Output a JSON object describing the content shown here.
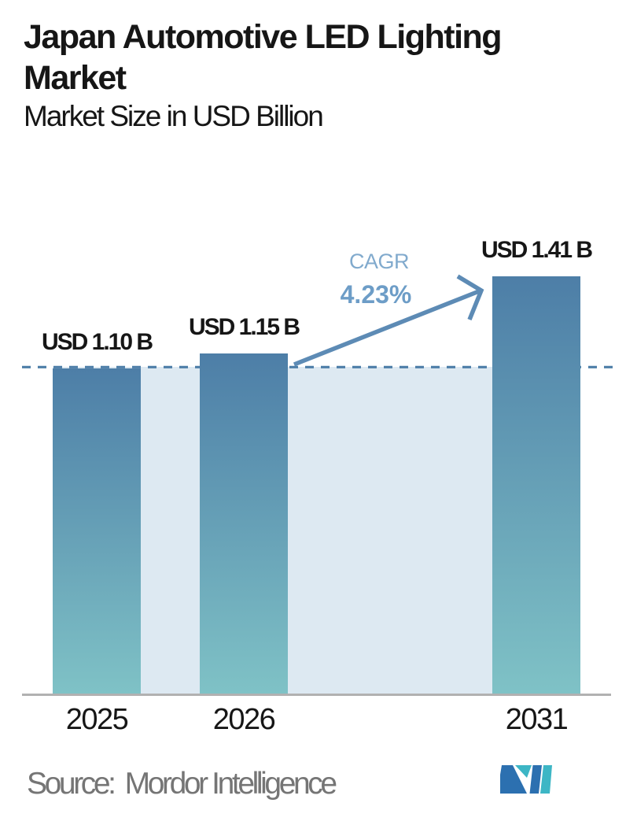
{
  "header": {
    "title": "Japan Automotive LED Lighting Market",
    "subtitle": "Market Size in USD Billion"
  },
  "chart_data": {
    "type": "bar",
    "categories": [
      "2025",
      "2026",
      "2031"
    ],
    "values": [
      1.1,
      1.15,
      1.41
    ],
    "bar_labels": [
      "USD 1.10 B",
      "USD 1.15 B",
      "USD 1.41 B"
    ],
    "title": "Japan Automotive LED Lighting Market",
    "ylabel": "Market Size in USD Billion",
    "guideline_value": 1.1,
    "annotation": {
      "label": "CAGR",
      "value": "4.23%"
    },
    "legend": "none",
    "grid": "off"
  },
  "footer": {
    "source_label": "Source:",
    "source_name": "Mordor Intelligence",
    "logo": "mordor-intelligence-logo"
  },
  "colors": {
    "bar_top": "#4d7ea7",
    "bar_bottom": "#7fc2c6",
    "band": "#dde9f2",
    "dashed_line": "#4d7ea8",
    "arrow": "#5d8bb5",
    "cagr_label": "#81aacd",
    "cagr_value": "#6d9dc7",
    "axis": "#b1b1b1",
    "text": "#161616",
    "source_text": "#757575",
    "logo_blue": "#2c70b0",
    "logo_teal": "#3db6c5"
  }
}
